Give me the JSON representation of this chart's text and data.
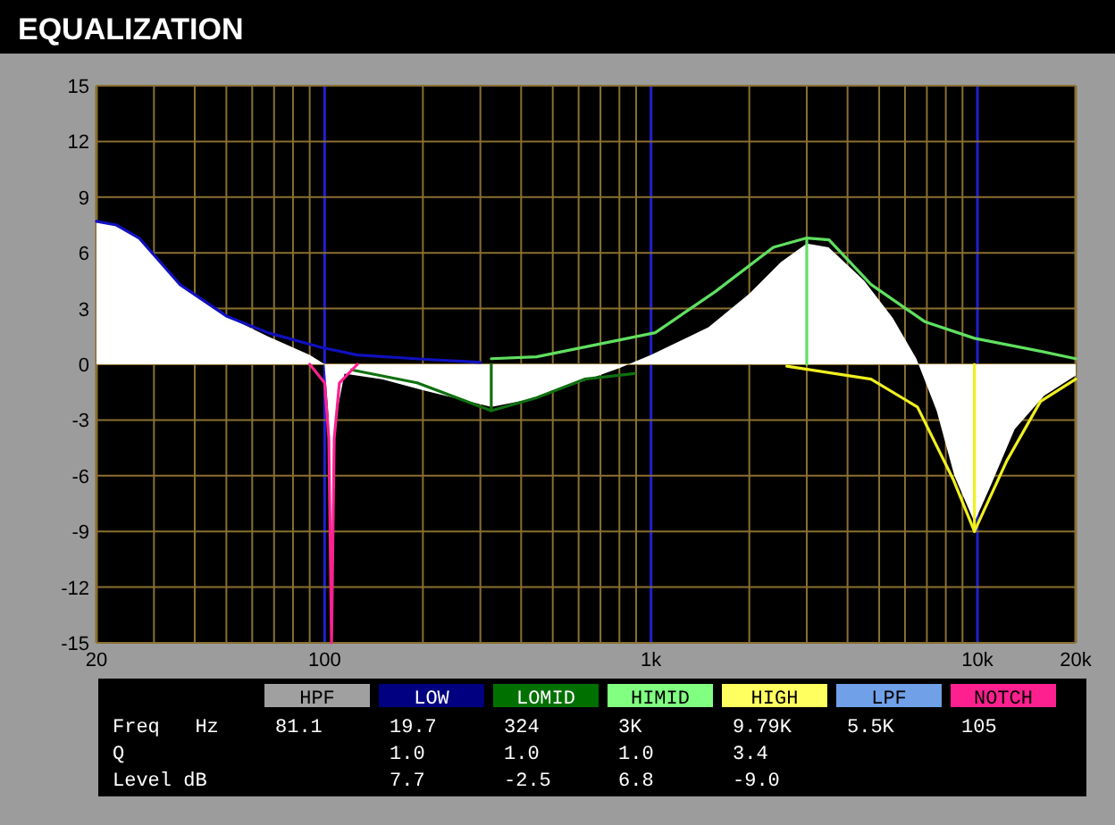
{
  "chart_data": [
    {
      "type": "line",
      "title": "EQUALIZATION",
      "log": "x",
      "grid": true,
      "line_style": "solid",
      "xlim": [
        20,
        20000
      ],
      "ylim": [
        -15,
        15
      ],
      "xticks": [
        20,
        {
          "value": 30,
          "label": null
        },
        {
          "value": 40,
          "label": null
        },
        {
          "value": 50,
          "label": null
        },
        {
          "value": 60,
          "label": null
        },
        {
          "value": 70,
          "label": null
        },
        {
          "value": 80,
          "label": null
        },
        {
          "value": 90,
          "label": null
        },
        100,
        {
          "value": 200,
          "label": null
        },
        {
          "value": 300,
          "label": null
        },
        {
          "value": 400,
          "label": null
        },
        {
          "value": 500,
          "label": null
        },
        {
          "value": 600,
          "label": null
        },
        {
          "value": 700,
          "label": null
        },
        {
          "value": 800,
          "label": null
        },
        {
          "value": 900,
          "label": null
        },
        {
          "value": 1000,
          "label": "1k"
        },
        {
          "value": 2000,
          "label": null
        },
        {
          "value": 3000,
          "label": null
        },
        {
          "value": 4000,
          "label": null
        },
        {
          "value": 5000,
          "label": null
        },
        {
          "value": 6000,
          "label": null
        },
        {
          "value": 7000,
          "label": null
        },
        {
          "value": 8000,
          "label": null
        },
        {
          "value": 9000,
          "label": null
        },
        {
          "value": 10000,
          "label": "10k"
        },
        {
          "value": 20000,
          "label": "20k"
        }
      ],
      "yticks": [
        -15,
        -12,
        -9,
        -6,
        -3,
        0,
        3,
        6,
        9,
        12,
        15
      ],
      "series": [
        {
          "type": "area",
          "color": "#ffffff",
          "x": [
            20,
            23,
            27,
            36,
            50,
            67,
            90,
            100,
            103,
            105,
            108,
            115,
            150,
            200,
            324,
            450,
            600,
            800,
            1000,
            1500,
            2000,
            2500,
            3000,
            3500,
            4500,
            5500,
            6500,
            7500,
            8500,
            9790,
            11000,
            13000,
            16000,
            20000
          ],
          "values": [
            7.7,
            7.5,
            6.8,
            4.3,
            2.6,
            1.5,
            0.5,
            0,
            -3,
            -10.5,
            -3,
            -0.5,
            -0.8,
            -1.4,
            -2.3,
            -1.8,
            -1.0,
            -0.2,
            0.5,
            2.0,
            3.8,
            5.5,
            6.5,
            6.3,
            4.5,
            2.5,
            0.3,
            -2.5,
            -6,
            -8.5,
            -6.5,
            -3.5,
            -1.7,
            -0.6
          ]
        },
        {
          "type": "line",
          "color": "#1010c0",
          "x": [
            20,
            23,
            27,
            36,
            50,
            67,
            98,
            126,
            190,
            300
          ],
          "values": [
            7.7,
            7.5,
            6.8,
            4.3,
            2.6,
            1.7,
            0.9,
            0.5,
            0.3,
            0.1
          ]
        },
        {
          "type": "line",
          "color": "#107010",
          "x": [
            121,
            192,
            324,
            446,
            625,
            890
          ],
          "values": [
            -0.3,
            -1.0,
            -2.5,
            -1.8,
            -0.8,
            -0.5
          ]
        },
        {
          "type": "line",
          "color": "#60e060",
          "x": [
            324,
            446,
            1030,
            1570,
            2370,
            3000,
            3510,
            4720,
            6890,
            9790,
            15600,
            20000
          ],
          "values": [
            0.3,
            0.4,
            1.7,
            3.9,
            6.3,
            6.8,
            6.7,
            4.3,
            2.3,
            1.4,
            0.7,
            0.3
          ]
        },
        {
          "type": "line",
          "color": "#f0f020",
          "x": [
            2606,
            4720,
            6550,
            8430,
            9790,
            12300,
            15600,
            20000
          ],
          "values": [
            -0.1,
            -0.8,
            -2.3,
            -6.2,
            -9,
            -5.2,
            -2.0,
            -0.8
          ]
        },
        {
          "type": "line",
          "color": "#ff2090",
          "x": [
            90,
            100,
            103,
            105,
            107,
            111,
            126
          ],
          "values": [
            0,
            -1,
            -4,
            -15,
            -4,
            -1,
            0
          ]
        },
        {
          "type": "line",
          "color": "#107010",
          "x": [
            324,
            324
          ],
          "values": [
            0,
            -2.5
          ]
        },
        {
          "type": "line",
          "color": "#60e060",
          "x": [
            3000,
            3000
          ],
          "values": [
            0,
            6.8
          ]
        },
        {
          "type": "line",
          "color": "#f0f020",
          "x": [
            9790,
            9790
          ],
          "values": [
            0,
            -9
          ]
        }
      ]
    },
    {
      "type": "other",
      "categories": [
        "HPF",
        "LOW",
        "LOMID",
        "HIMID",
        "HIGH",
        "LPF",
        "NOTCH"
      ],
      "colors": [
        "#a0a0a0",
        "#000080",
        "#007000",
        "#80ff80",
        "#ffff60",
        "#6fa0e8",
        "#ff2090"
      ],
      "y_categories": [
        "Freq   Hz",
        "Q",
        "Level dB"
      ],
      "cell_labels": [
        [
          "81.1",
          "19.7",
          "324",
          "3K",
          "9.79K",
          "5.5K",
          "105"
        ],
        [
          null,
          "1.0",
          "1.0",
          "1.0",
          "3.4",
          null,
          null
        ],
        [
          null,
          "7.7",
          "-2.5",
          "6.8",
          "-9.0",
          null,
          null
        ]
      ]
    }
  ]
}
